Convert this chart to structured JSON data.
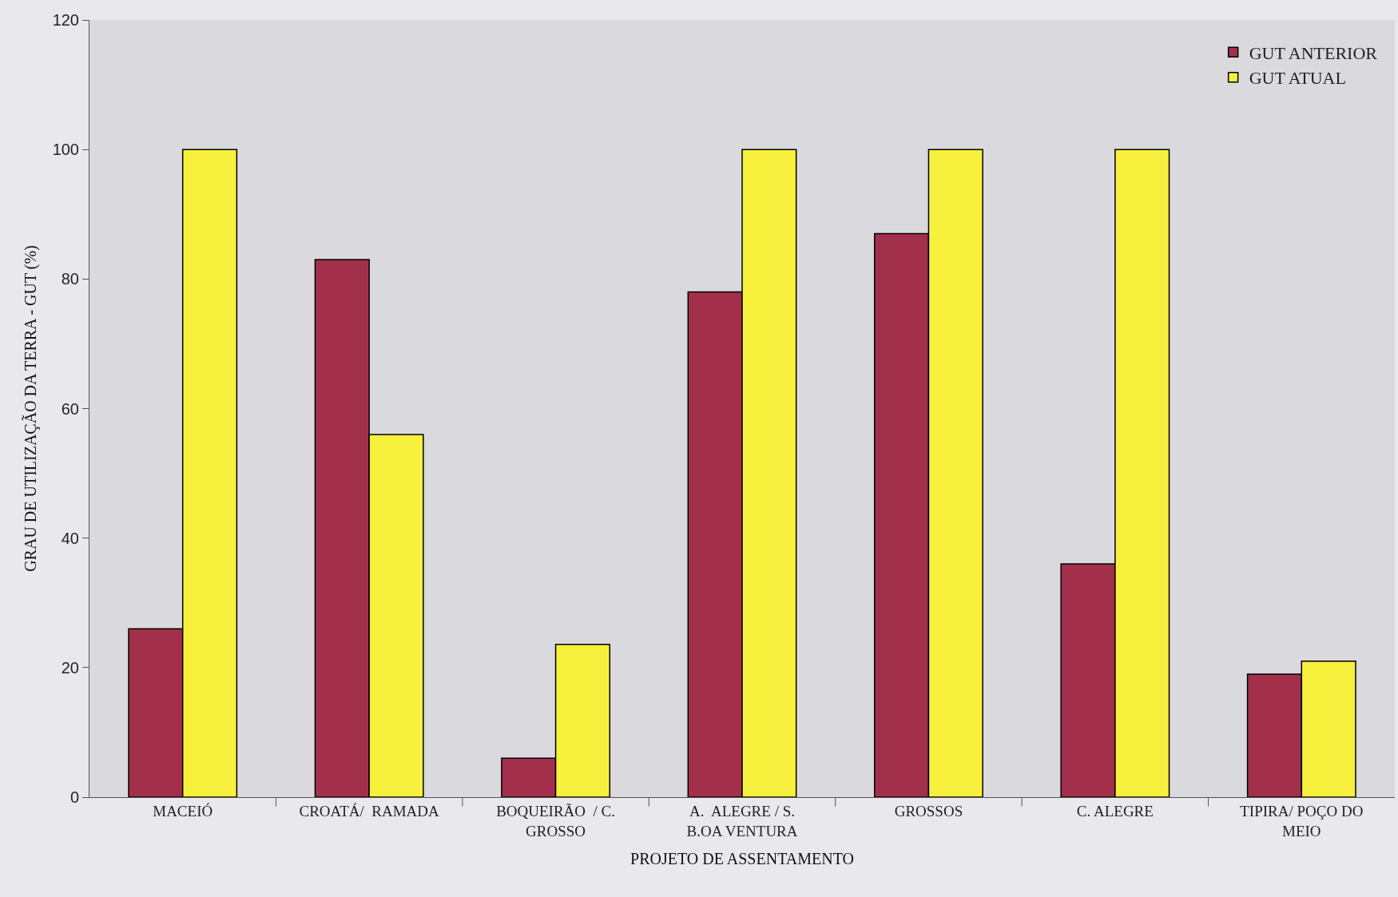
{
  "chart_data": {
    "type": "bar",
    "xlabel": "PROJETO DE ASSENTAMENTO",
    "ylabel": "GRAU DE UTILIZAÇÃO DA TERRA - GUT (%)",
    "categories": [
      "MACEIÓ",
      "CROATÁ/  RAMADA",
      "BOQUEIRÃO  / C.\nGROSSO",
      "A.  ALEGRE / S.\nB.OA VENTURA",
      "GROSSOS",
      "C. ALEGRE",
      "TIPIRA/ POÇO DO\nMEIO"
    ],
    "series": [
      {
        "name": "GUT ANTERIOR",
        "color": "#a3304a",
        "values": [
          26,
          83,
          6,
          78,
          87,
          36,
          19
        ]
      },
      {
        "name": "GUT ATUAL",
        "color": "#f7f03c",
        "values": [
          100,
          56,
          23.6,
          100,
          100,
          100,
          21
        ]
      }
    ],
    "ylim": [
      0,
      120
    ],
    "yticks": [
      0,
      20,
      40,
      60,
      80,
      100,
      120
    ],
    "grid": false,
    "legend": "top right"
  }
}
